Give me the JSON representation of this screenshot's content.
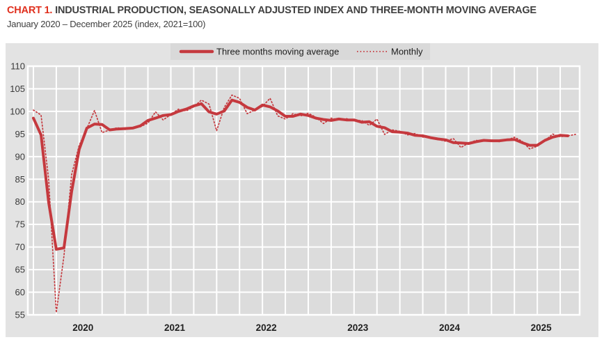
{
  "header": {
    "title_prefix": "CHART 1.",
    "title": " INDUSTRIAL PRODUCTION, SEASONALLY ADJUSTED INDEX AND THREE-MONTH MOVING AVERAGE",
    "subtitle": "January 2020 – December 2025 (index, 2021=100)"
  },
  "colors": {
    "title_accent": "#e0301e",
    "line_red": "#c5393e",
    "panel_bg": "#e3e3e3",
    "legend_bg": "#d9d9d9",
    "plot_bg": "#dcdcdc",
    "grid": "#ffffff",
    "axis_text": "#3a3a3a",
    "year_text": "#1f1f1f"
  },
  "chart_data": {
    "type": "line",
    "title": "Industrial production, seasonally adjusted index and three-month moving average",
    "x_unit": "month",
    "x_range": [
      "2020-01",
      "2025-12"
    ],
    "months_total": 72,
    "x_tick_labels": [
      "2020",
      "2021",
      "2022",
      "2023",
      "2024",
      "2025"
    ],
    "ylim": [
      55,
      110
    ],
    "y_ticks": [
      55,
      60,
      65,
      70,
      75,
      80,
      85,
      90,
      95,
      100,
      105,
      110
    ],
    "grid": "on",
    "vertical_grid_every_months": 3,
    "legend_position": "top-center",
    "series": [
      {
        "name": "Three months moving average",
        "style": "solid",
        "start_month": "2020-01",
        "values": [
          98.5,
          94.8,
          79.9,
          69.5,
          69.8,
          82.2,
          91.6,
          96.3,
          97.2,
          97.1,
          95.9,
          96.1,
          96.2,
          96.3,
          96.8,
          98.0,
          98.5,
          99.1,
          99.3,
          100.0,
          100.5,
          101.2,
          101.7,
          99.9,
          99.4,
          100.1,
          102.5,
          102.0,
          100.9,
          100.3,
          101.4,
          101.0,
          100.1,
          98.9,
          98.9,
          99.4,
          99.1,
          98.5,
          98.2,
          98.0,
          98.3,
          98.1,
          98.1,
          97.6,
          97.7,
          96.7,
          96.4,
          95.5,
          95.4,
          95.2,
          94.7,
          94.6,
          94.2,
          93.9,
          93.7,
          93.1,
          93.0,
          92.9,
          93.3,
          93.6,
          93.5,
          93.5,
          93.7,
          93.8,
          93.1,
          92.5,
          92.5,
          93.6,
          94.3,
          94.7,
          94.6
        ]
      },
      {
        "name": "Monthly",
        "style": "dotted",
        "start_month": "2020-01",
        "values": [
          100.3,
          99.2,
          85.0,
          55.5,
          68.0,
          86.0,
          92.5,
          96.2,
          100.2,
          95.3,
          95.9,
          96.4,
          96.0,
          96.3,
          96.6,
          97.4,
          99.9,
          98.1,
          99.3,
          100.5,
          100.1,
          101.0,
          102.5,
          101.6,
          95.7,
          100.9,
          103.6,
          102.9,
          99.5,
          100.3,
          101.1,
          102.9,
          99.0,
          98.3,
          99.5,
          99.0,
          99.6,
          98.7,
          97.3,
          98.5,
          98.1,
          98.4,
          97.9,
          98.0,
          96.9,
          98.3,
          94.9,
          95.9,
          95.6,
          94.8,
          95.1,
          94.3,
          94.4,
          93.8,
          93.4,
          94.0,
          92.0,
          93.0,
          93.6,
          93.4,
          93.7,
          93.3,
          93.6,
          94.3,
          93.4,
          91.7,
          92.3,
          93.5,
          95.0,
          94.4,
          94.6,
          94.9
        ]
      }
    ]
  }
}
